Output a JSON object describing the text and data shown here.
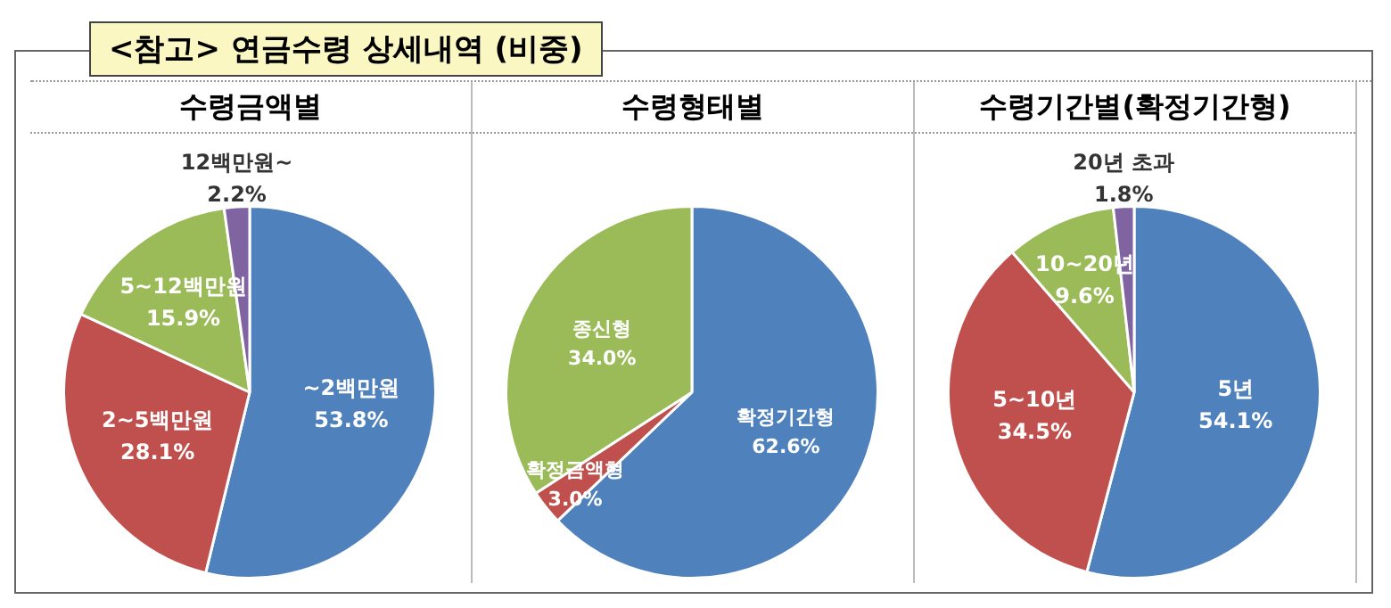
{
  "chart_data": [
    {
      "type": "other",
      "title": "<참고> 연금수령 상세내역 (비중)"
    },
    {
      "type": "pie",
      "title": "수령금액별",
      "categories": [
        "~2백만원",
        "2~5백만원",
        "5~12백만원",
        "12백만원~"
      ],
      "values": [
        53.8,
        28.1,
        15.9,
        2.2
      ],
      "colors": [
        "#4f81bd",
        "#c0504d",
        "#9bbb59",
        "#8064a2"
      ],
      "value_labels": [
        "53.8%",
        "28.1%",
        "15.9%",
        "2.2%"
      ]
    },
    {
      "type": "pie",
      "title": "수령형태별",
      "categories": [
        "확정기간형",
        "확정금액형",
        "종신형"
      ],
      "values": [
        62.6,
        3.0,
        34.0
      ],
      "colors": [
        "#4f81bd",
        "#c0504d",
        "#9bbb59"
      ],
      "value_labels": [
        "62.6%",
        "3.0%",
        "34.0%"
      ]
    },
    {
      "type": "pie",
      "title": "수령기간별(확정기간형)",
      "categories": [
        "5년",
        "5~10년",
        "10~20년",
        "20년 초과"
      ],
      "values": [
        54.1,
        34.5,
        9.6,
        1.8
      ],
      "colors": [
        "#4f81bd",
        "#c0504d",
        "#9bbb59",
        "#8064a2"
      ],
      "value_labels": [
        "54.1%",
        "34.5%",
        "9.6%",
        "1.8%"
      ]
    }
  ]
}
